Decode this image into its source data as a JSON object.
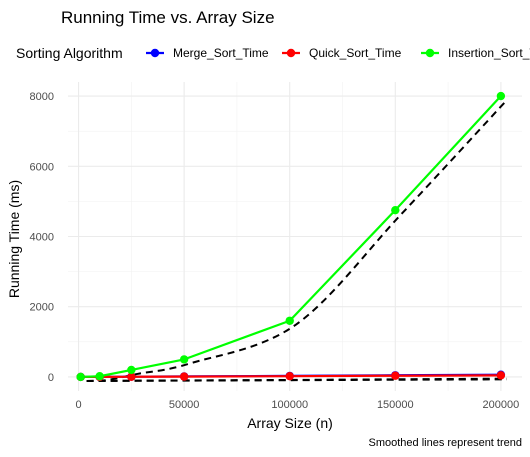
{
  "chart_data": {
    "type": "line",
    "title": "Running Time vs. Array Size",
    "xlabel": "Array Size (n)",
    "ylabel": "Running Time (ms)",
    "caption": "Smoothed lines represent trend",
    "legend_title": "Sorting Algorithm",
    "legend_position": "top",
    "grid": true,
    "xlim": [
      -5000,
      210000
    ],
    "ylim": [
      -400,
      8400
    ],
    "x_ticks": [
      0,
      50000,
      100000,
      150000,
      200000
    ],
    "x_tick_labels": [
      "0",
      "50000",
      "100000",
      "150000",
      "200000"
    ],
    "y_ticks": [
      0,
      2000,
      4000,
      6000,
      8000
    ],
    "y_tick_labels": [
      "0",
      "2000",
      "4000",
      "6000",
      "8000"
    ],
    "x": [
      1000,
      10000,
      25000,
      50000,
      100000,
      150000,
      200000
    ],
    "series": [
      {
        "name": "Merge_Sort_Time",
        "color": "#0000ff",
        "values": [
          0.3,
          3,
          8,
          16,
          30,
          48,
          65
        ]
      },
      {
        "name": "Quick_Sort_Time",
        "color": "#ff0000",
        "values": [
          0.2,
          2,
          5,
          10,
          22,
          35,
          45
        ]
      },
      {
        "name": "Insertion_Sort_Time",
        "color": "#00ff00",
        "values": [
          0.1,
          20,
          200,
          500,
          1600,
          4750,
          8000
        ]
      }
    ],
    "trend_line_style": "dashed",
    "trend_line_color": "#000000"
  }
}
